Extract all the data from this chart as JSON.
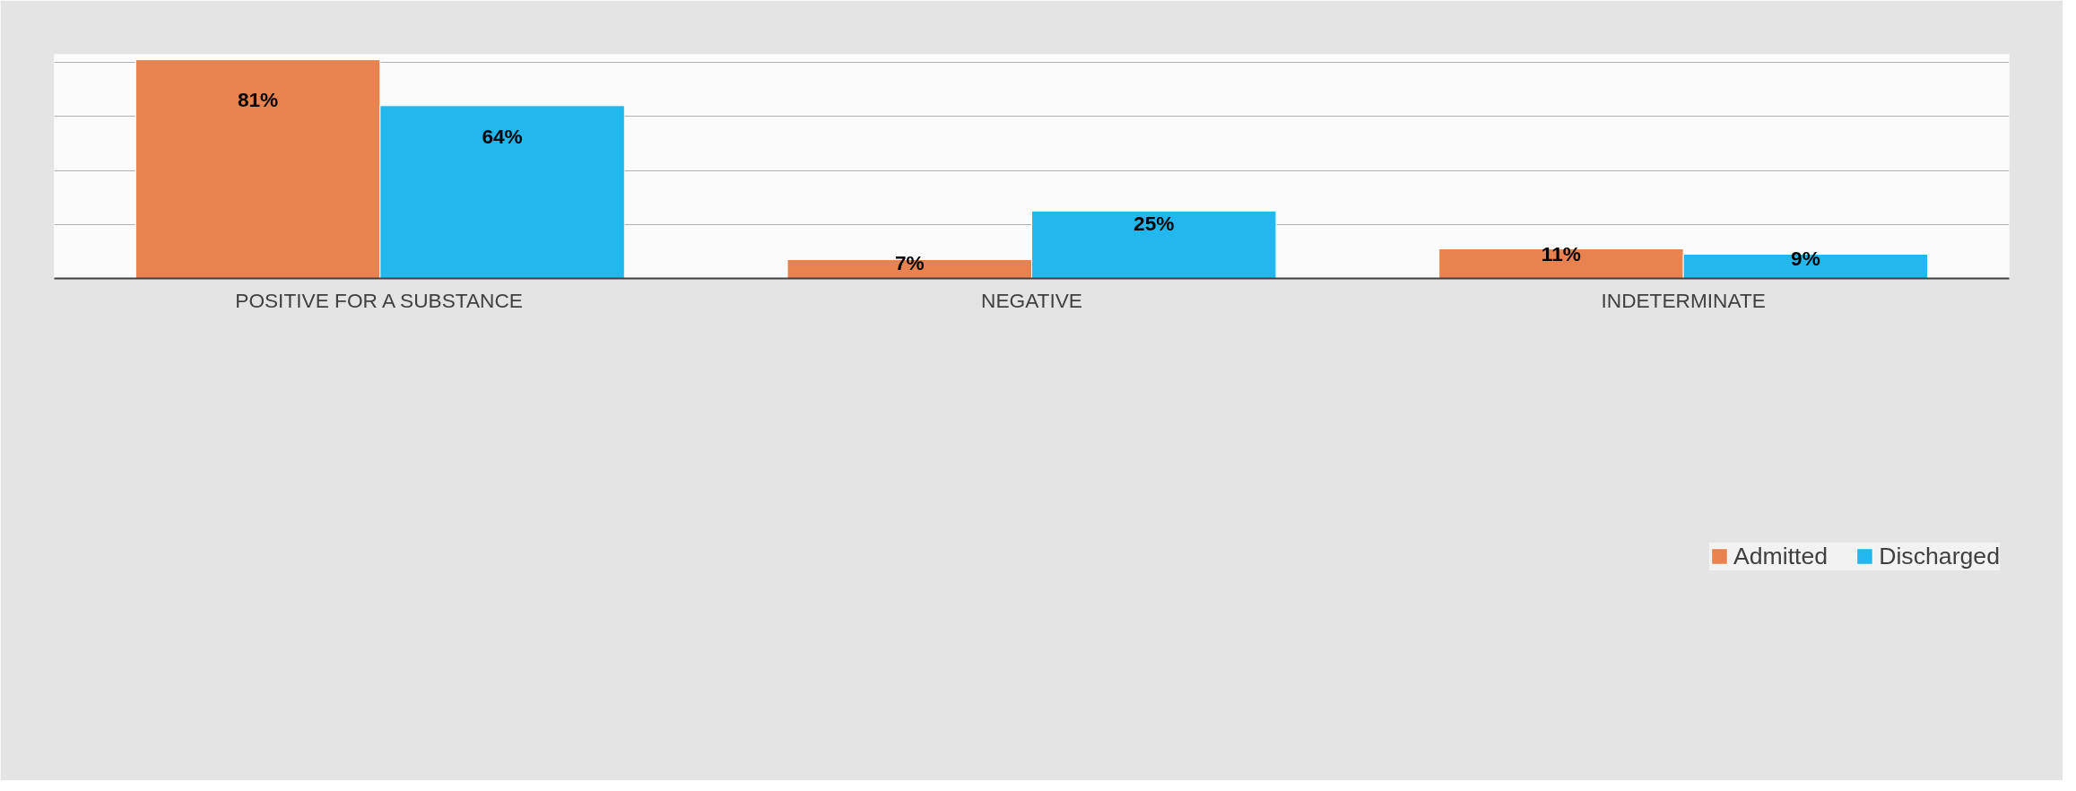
{
  "chart_data": {
    "type": "bar",
    "categories": [
      "POSITIVE FOR A SUBSTANCE",
      "NEGATIVE",
      "INDETERMINATE"
    ],
    "series": [
      {
        "name": "Admitted",
        "color": "#e8834f",
        "values": [
          81,
          7,
          11
        ],
        "value_labels": [
          "81%",
          "7%",
          "11%"
        ]
      },
      {
        "name": "Discharged",
        "color": "#22b8ee",
        "values": [
          64,
          25,
          9
        ],
        "value_labels": [
          "64%",
          "25%",
          "9%"
        ]
      }
    ],
    "tick_labels": "x",
    "grid": "y",
    "legend": "bottom"
  }
}
